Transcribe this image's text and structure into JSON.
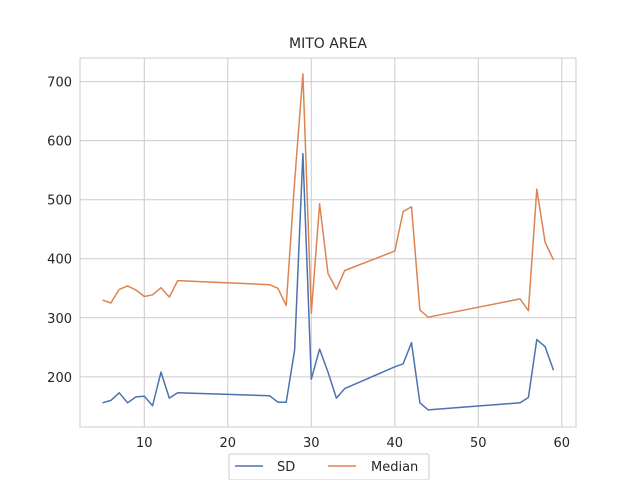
{
  "chart_data": {
    "type": "line",
    "title": "MITO AREA",
    "xlabel": "",
    "ylabel": "",
    "xlim": [
      2.3,
      61.7
    ],
    "ylim": [
      115,
      740
    ],
    "xticks": [
      10,
      20,
      30,
      40,
      50,
      60
    ],
    "yticks": [
      200,
      300,
      400,
      500,
      600,
      700
    ],
    "grid": true,
    "legend": {
      "placement": "bottom-center",
      "columns": 2
    },
    "x": [
      5,
      6,
      7,
      8,
      9,
      10,
      11,
      12,
      13,
      14,
      25,
      26,
      27,
      28,
      29,
      30,
      31,
      32,
      33,
      34,
      40,
      41,
      42,
      43,
      44,
      55,
      56,
      57,
      58,
      59
    ],
    "series": [
      {
        "name": "SD",
        "color": "#4c72b0",
        "values": [
          156,
          160,
          173,
          156,
          166,
          167,
          151,
          208,
          164,
          173,
          168,
          157,
          157,
          245,
          578,
          196,
          247,
          208,
          164,
          180,
          217,
          222,
          258,
          156,
          144,
          156,
          165,
          263,
          251,
          211
        ]
      },
      {
        "name": "Median",
        "color": "#dd8452",
        "values": [
          330,
          325,
          348,
          354,
          347,
          336,
          339,
          351,
          335,
          363,
          356,
          350,
          321,
          530,
          713,
          308,
          493,
          375,
          348,
          380,
          413,
          480,
          488,
          313,
          301,
          332,
          312,
          518,
          428,
          398
        ]
      }
    ]
  }
}
